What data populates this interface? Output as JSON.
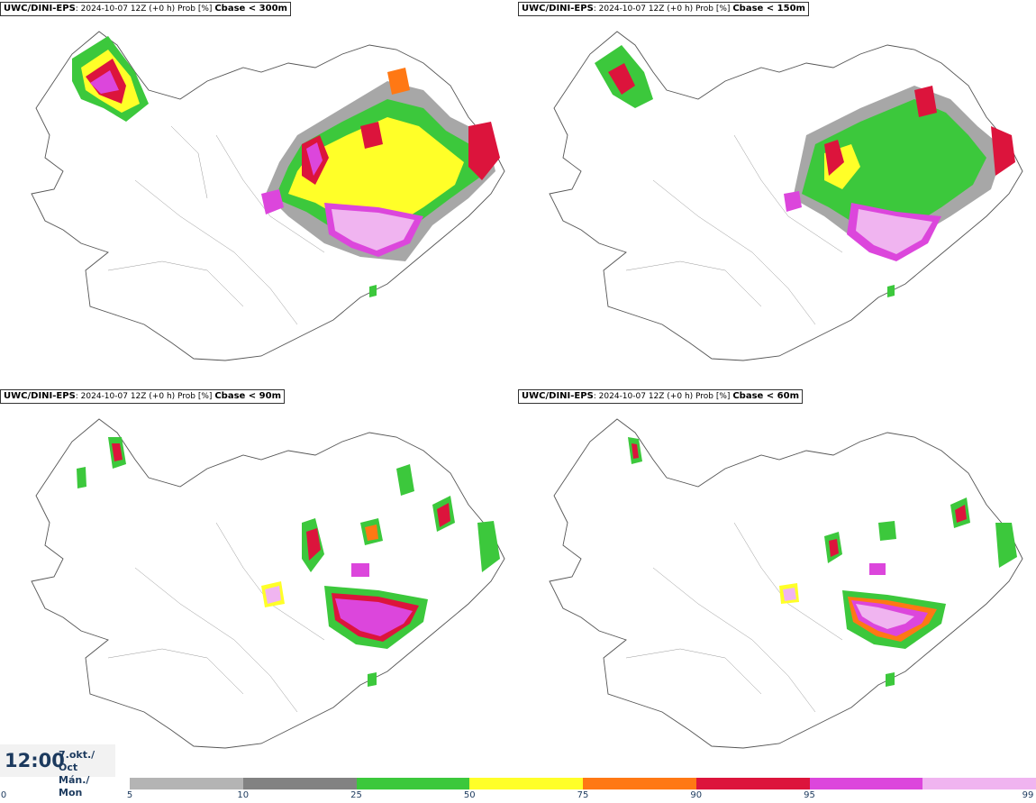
{
  "panels": [
    {
      "model": "UWC/DINI-EPS",
      "run": ": 2024-10-07 12Z (+0 h) Prob [%]",
      "threshold": "Cbase < 300m"
    },
    {
      "model": "UWC/DINI-EPS",
      "run": ": 2024-10-07 12Z (+0 h) Prob [%]",
      "threshold": "Cbase < 150m"
    },
    {
      "model": "UWC/DINI-EPS",
      "run": ": 2024-10-07 12Z (+0 h) Prob [%]",
      "threshold": "Cbase < 90m"
    },
    {
      "model": "UWC/DINI-EPS",
      "run": ": 2024-10-07 12Z (+0 h) Prob [%]",
      "threshold": "Cbase < 60m"
    }
  ],
  "time": {
    "clock": "12:00",
    "date_line1": "7.okt./ Oct",
    "date_line2": "Mán./ Mon"
  },
  "colorbar": {
    "ticks": [
      "0",
      "5",
      "10",
      "25",
      "50",
      "75",
      "90",
      "95",
      "99"
    ],
    "colors": [
      "#b4b4b4",
      "#828282",
      "#3cc83c",
      "#ffff28",
      "#ff7814",
      "#dc143c",
      "#dc46dc",
      "#f0b4f0"
    ]
  }
}
